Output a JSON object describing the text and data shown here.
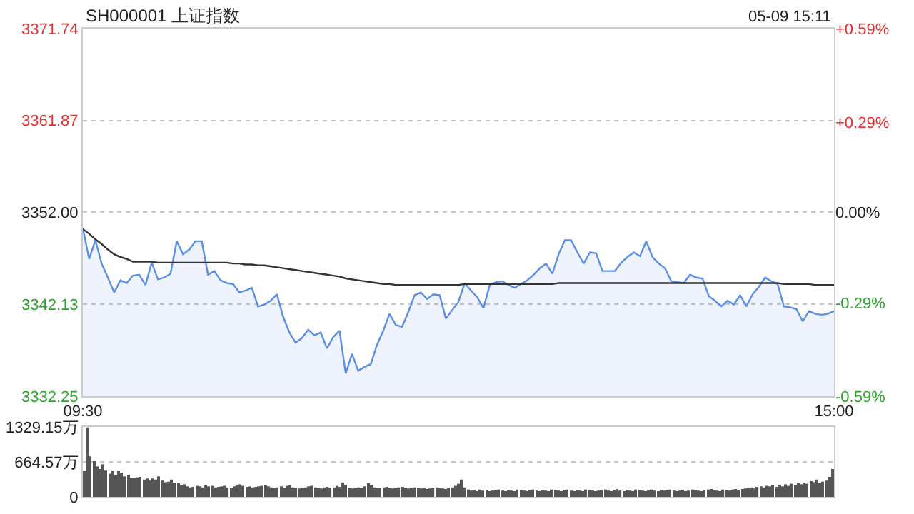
{
  "chart_data": [
    {
      "type": "line",
      "title": "SH000001 上证指数",
      "annotations": [
        "05-09 15:11"
      ],
      "categories": [
        "09:30",
        null,
        null,
        null,
        null,
        null,
        null,
        null,
        null,
        null,
        null,
        null,
        null,
        null,
        null,
        null,
        null,
        null,
        null,
        null,
        null,
        null,
        null,
        null,
        null,
        null,
        null,
        null,
        null,
        null,
        null,
        null,
        null,
        null,
        null,
        null,
        null,
        null,
        null,
        null,
        null,
        null,
        null,
        null,
        null,
        null,
        null,
        null,
        null,
        null,
        null,
        null,
        null,
        null,
        null,
        null,
        null,
        null,
        null,
        null,
        null,
        null,
        null,
        null,
        null,
        null,
        null,
        null,
        null,
        null,
        null,
        null,
        null,
        null,
        null,
        null,
        null,
        null,
        null,
        null,
        null,
        null,
        null,
        null,
        null,
        null,
        null,
        null,
        null,
        null,
        null,
        null,
        null,
        null,
        null,
        null,
        null,
        null,
        null,
        null,
        null,
        null,
        null,
        null,
        null,
        null,
        null,
        null,
        null,
        null,
        null,
        null,
        null,
        null,
        null,
        null,
        null,
        null,
        null,
        null,
        "15:00"
      ],
      "ylim": [
        3332.25,
        3371.74
      ],
      "yticks": [
        3332.25,
        3342.13,
        {
          "value": 3352,
          "label": "3352.00"
        },
        3361.87,
        3371.74
      ],
      "y2lim": [
        -0.59,
        0.59
      ],
      "y2ticks": [
        {
          "value": -0.59,
          "label": "-0.59%"
        },
        {
          "value": -0.29,
          "label": "-0.29%"
        },
        {
          "value": 0,
          "label": "0.00%"
        },
        {
          "value": 0.29,
          "label": "+0.29%"
        },
        {
          "value": 0.59,
          "label": "+0.59%"
        }
      ],
      "grid": "y",
      "marker": "none",
      "line_style": "solid",
      "series": [
        {
          "type": "area",
          "color": "#5a8ee8",
          "values": [
            3350.3,
            3347.0,
            3349.0,
            3346.5,
            3345.0,
            3343.4,
            3344.7,
            3344.4,
            3345.2,
            3345.3,
            3344.2,
            3346.6,
            3344.8,
            3345.0,
            3345.4,
            3348.9,
            3347.5,
            3348.0,
            3348.9,
            3348.9,
            3345.3,
            3345.7,
            3344.7,
            3344.4,
            3344.3,
            3343.4,
            3343.6,
            3343.9,
            3341.9,
            3342.1,
            3342.5,
            3343.2,
            3340.8,
            3339.1,
            3338.0,
            3338.5,
            3339.4,
            3338.8,
            3339.1,
            3337.4,
            3338.6,
            3339.3,
            3334.7,
            3336.8,
            3335.0,
            3335.4,
            3335.7,
            3337.8,
            3339.3,
            3341.1,
            3339.9,
            3339.7,
            3341.3,
            3343.1,
            3343.4,
            3342.7,
            3343.2,
            3343.1,
            3340.6,
            3341.5,
            3342.4,
            3344.4,
            3343.6,
            3342.9,
            3341.7,
            3344.2,
            3344.5,
            3344.6,
            3344.2,
            3343.9,
            3344.3,
            3344.7,
            3345.3,
            3346.0,
            3346.5,
            3345.4,
            3347.5,
            3349.0,
            3349.0,
            3347.7,
            3346.5,
            3347.7,
            3347.6,
            3345.7,
            3345.7,
            3345.7,
            3346.6,
            3347.2,
            3347.7,
            3347.3,
            3348.9,
            3347.2,
            3346.5,
            3346.0,
            3344.6,
            3344.5,
            3344.4,
            3345.3,
            3345.0,
            3344.9,
            3343.0,
            3342.5,
            3341.9,
            3342.5,
            3342.1,
            3343.1,
            3341.9,
            3343.2,
            3344.0,
            3345.0,
            3344.6,
            3344.3,
            3341.9,
            3341.8,
            3341.6,
            3340.3,
            3341.4,
            3341.1,
            3341.0,
            3341.1,
            3341.4
          ]
        },
        {
          "type": "line",
          "color": "#333333",
          "values": [
            3350.2,
            3349.7,
            3349.1,
            3348.6,
            3348.0,
            3347.5,
            3347.2,
            3347.0,
            3346.7,
            3346.7,
            3346.7,
            3346.7,
            3346.6,
            3346.6,
            3346.6,
            3346.6,
            3346.6,
            3346.6,
            3346.6,
            3346.6,
            3346.6,
            3346.6,
            3346.6,
            3346.6,
            3346.5,
            3346.5,
            3346.4,
            3346.4,
            3346.3,
            3346.3,
            3346.2,
            3346.1,
            3346.0,
            3345.9,
            3345.8,
            3345.7,
            3345.6,
            3345.5,
            3345.4,
            3345.3,
            3345.2,
            3345.1,
            3344.9,
            3344.8,
            3344.7,
            3344.6,
            3344.5,
            3344.4,
            3344.3,
            3344.3,
            3344.2,
            3344.2,
            3344.2,
            3344.2,
            3344.2,
            3344.2,
            3344.2,
            3344.2,
            3344.2,
            3344.2,
            3344.2,
            3344.3,
            3344.3,
            3344.3,
            3344.3,
            3344.3,
            3344.3,
            3344.3,
            3344.3,
            3344.3,
            3344.3,
            3344.3,
            3344.3,
            3344.3,
            3344.3,
            3344.3,
            3344.4,
            3344.4,
            3344.4,
            3344.4,
            3344.4,
            3344.4,
            3344.4,
            3344.4,
            3344.4,
            3344.4,
            3344.4,
            3344.4,
            3344.4,
            3344.4,
            3344.4,
            3344.4,
            3344.4,
            3344.4,
            3344.4,
            3344.4,
            3344.4,
            3344.4,
            3344.4,
            3344.4,
            3344.4,
            3344.4,
            3344.4,
            3344.4,
            3344.4,
            3344.4,
            3344.4,
            3344.4,
            3344.4,
            3344.4,
            3344.4,
            3344.4,
            3344.3,
            3344.3,
            3344.3,
            3344.3,
            3344.3,
            3344.2,
            3344.2,
            3344.2,
            3344.2
          ]
        }
      ]
    },
    {
      "type": "bar",
      "color": "#555555",
      "tick_labels": "y",
      "grid": "y",
      "ylim": [
        0,
        1329.15
      ],
      "yticks": [
        0,
        {
          "value": 664.57,
          "label": "664.57万"
        },
        {
          "value": 1329.15,
          "label": "1329.15万"
        }
      ],
      "categories": [
        null,
        null,
        null,
        null,
        null,
        null,
        null,
        null,
        null,
        null,
        null,
        null,
        null,
        null,
        null,
        null,
        null,
        null,
        null,
        null,
        null,
        null,
        null,
        null,
        null,
        null,
        null,
        null,
        null,
        null,
        null,
        null,
        null,
        null,
        null,
        null,
        null,
        null,
        null,
        null,
        null,
        null,
        null,
        null,
        null,
        null,
        null,
        null,
        null,
        null,
        null,
        null,
        null,
        null,
        null,
        null,
        null,
        null,
        null,
        null,
        null,
        null,
        null,
        null,
        null,
        null,
        null,
        null,
        null,
        null,
        null,
        null,
        null,
        null,
        null,
        null,
        null,
        null,
        null,
        null,
        null,
        null,
        null,
        null,
        null,
        null,
        null,
        null,
        null,
        null,
        null,
        null,
        null,
        null,
        null,
        null,
        null,
        null,
        null,
        null,
        null,
        null,
        null,
        null,
        null,
        null,
        null,
        null,
        null,
        null,
        null,
        null,
        null,
        null,
        null,
        null,
        null,
        null,
        null,
        null,
        null,
        null,
        null,
        null,
        null,
        null,
        null,
        null,
        null,
        null,
        null,
        null,
        null,
        null,
        null,
        null,
        null,
        null,
        null,
        null,
        null,
        null,
        null,
        null,
        null,
        null,
        null,
        null,
        null,
        null,
        null,
        null,
        null,
        null,
        null,
        null,
        null,
        null,
        null,
        null,
        null,
        null,
        null,
        null,
        null,
        null,
        null,
        null,
        null,
        null,
        null,
        null,
        null,
        null,
        null,
        null,
        null,
        null,
        null,
        null,
        null,
        null,
        null,
        null,
        null,
        null,
        null,
        null,
        null,
        null,
        null,
        null,
        null,
        null,
        null,
        null,
        null,
        null,
        null,
        null,
        null,
        null,
        null,
        null,
        null,
        null,
        null,
        null,
        null,
        null,
        null,
        null,
        null,
        null,
        null,
        null,
        null,
        null,
        null,
        null,
        null,
        null,
        null,
        null,
        null,
        null,
        null,
        null,
        null,
        null,
        null,
        null,
        null,
        null,
        null,
        null,
        null,
        null,
        null,
        null,
        null
      ],
      "values": [
        490,
        1320,
        770,
        680,
        580,
        530,
        620,
        500,
        440,
        490,
        420,
        490,
        460,
        390,
        420,
        360,
        360,
        370,
        380,
        330,
        350,
        310,
        350,
        330,
        390,
        310,
        280,
        290,
        330,
        270,
        260,
        220,
        240,
        200,
        180,
        190,
        210,
        200,
        180,
        220,
        200,
        210,
        180,
        190,
        200,
        210,
        180,
        170,
        200,
        220,
        240,
        210,
        190,
        200,
        180,
        190,
        200,
        210,
        220,
        200,
        180,
        170,
        180,
        200,
        170,
        210,
        220,
        180,
        170,
        160,
        170,
        180,
        200,
        210,
        180,
        170,
        160,
        180,
        190,
        170,
        180,
        210,
        190,
        270,
        230,
        170,
        160,
        170,
        180,
        170,
        200,
        260,
        220,
        180,
        170,
        170,
        180,
        190,
        170,
        160,
        170,
        180,
        190,
        170,
        160,
        170,
        180,
        170,
        160,
        170,
        150,
        160,
        170,
        180,
        170,
        160,
        150,
        170,
        180,
        210,
        250,
        330,
        180,
        140,
        120,
        130,
        110,
        140,
        120,
        130,
        110,
        120,
        130,
        140,
        120,
        110,
        130,
        120,
        110,
        140,
        130,
        120,
        110,
        130,
        140,
        120,
        110,
        130,
        120,
        110,
        140,
        130,
        120,
        110,
        130,
        140,
        120,
        110,
        130,
        120,
        110,
        140,
        130,
        120,
        110,
        120,
        130,
        140,
        120,
        110,
        130,
        150,
        120,
        110,
        130,
        120,
        110,
        140,
        130,
        120,
        110,
        130,
        140,
        120,
        110,
        130,
        120,
        130,
        140,
        120,
        110,
        120,
        130,
        110,
        120,
        140,
        130,
        120,
        110,
        130,
        140,
        150,
        130,
        120,
        110,
        140,
        130,
        120,
        140,
        150,
        130,
        150,
        160,
        170,
        180,
        160,
        190,
        200,
        180,
        210,
        200,
        220,
        190,
        230,
        200,
        240,
        210,
        250,
        230,
        260,
        240,
        270,
        250,
        300,
        280,
        330,
        260,
        290,
        310,
        380,
        530
      ]
    }
  ]
}
